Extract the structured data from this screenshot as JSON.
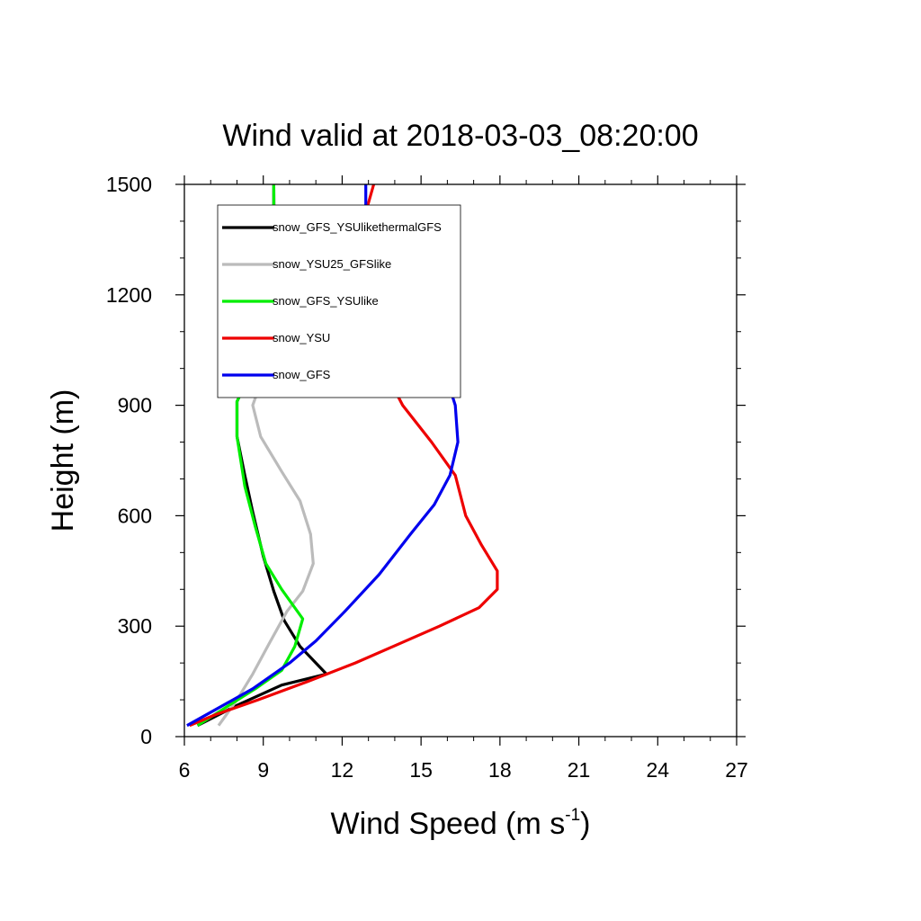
{
  "chart_data": {
    "type": "line",
    "title": "Wind valid at 2018-03-03_08:20:00",
    "xlabel": "Wind Speed (m s",
    "xlabel_superscript": "-1",
    "xlabel_suffix": ")",
    "ylabel": "Height (m)",
    "xlim": [
      6,
      27
    ],
    "ylim": [
      0,
      1500
    ],
    "xticks": [
      6,
      9,
      12,
      15,
      18,
      21,
      24,
      27
    ],
    "yticks": [
      0,
      300,
      600,
      900,
      1200,
      1500
    ],
    "x_minor_step": 1,
    "y_minor_step": 100,
    "grid": false,
    "legend_position": "top-left",
    "series": [
      {
        "name": "snow_GFS_YSUlikethermalGFS",
        "color": "#000000",
        "points": [
          [
            6.5,
            30
          ],
          [
            8.0,
            85
          ],
          [
            9.7,
            140
          ],
          [
            11.4,
            170
          ],
          [
            10.4,
            245
          ],
          [
            9.8,
            315
          ],
          [
            9.4,
            395
          ],
          [
            9.0,
            490
          ],
          [
            8.6,
            610
          ],
          [
            8.3,
            710
          ],
          [
            8.0,
            815
          ],
          [
            8.0,
            910
          ],
          [
            8.6,
            1000
          ],
          [
            9.1,
            1080
          ],
          [
            9.3,
            1130
          ],
          [
            9.4,
            1250
          ],
          [
            9.4,
            1380
          ],
          [
            9.4,
            1500
          ]
        ]
      },
      {
        "name": "snow_YSU25_GFSlike",
        "color": "#bbbbbb",
        "points": [
          [
            7.3,
            30
          ],
          [
            8.0,
            100
          ],
          [
            8.6,
            170
          ],
          [
            9.2,
            250
          ],
          [
            9.9,
            340
          ],
          [
            10.5,
            395
          ],
          [
            10.9,
            470
          ],
          [
            10.8,
            550
          ],
          [
            10.4,
            640
          ],
          [
            9.7,
            720
          ],
          [
            8.9,
            815
          ],
          [
            8.6,
            900
          ],
          [
            9.0,
            980
          ],
          [
            9.3,
            1030
          ],
          [
            9.5,
            1100
          ],
          [
            9.5,
            1250
          ],
          [
            9.4,
            1500
          ]
        ]
      },
      {
        "name": "snow_GFS_YSUlike",
        "color": "#00ee00",
        "points": [
          [
            6.5,
            30
          ],
          [
            7.7,
            85
          ],
          [
            8.7,
            130
          ],
          [
            9.7,
            180
          ],
          [
            10.2,
            245
          ],
          [
            10.5,
            320
          ],
          [
            9.7,
            400
          ],
          [
            9.1,
            470
          ],
          [
            8.7,
            570
          ],
          [
            8.3,
            680
          ],
          [
            8.0,
            815
          ],
          [
            8.0,
            910
          ],
          [
            8.6,
            1000
          ],
          [
            9.1,
            1080
          ],
          [
            9.3,
            1130
          ],
          [
            9.4,
            1250
          ],
          [
            9.4,
            1500
          ]
        ]
      },
      {
        "name": "snow_YSU",
        "color": "#ee0000",
        "points": [
          [
            6.2,
            30
          ],
          [
            7.2,
            60
          ],
          [
            8.8,
            100
          ],
          [
            10.7,
            150
          ],
          [
            12.5,
            200
          ],
          [
            14.1,
            250
          ],
          [
            15.7,
            300
          ],
          [
            17.2,
            350
          ],
          [
            17.9,
            400
          ],
          [
            17.9,
            450
          ],
          [
            17.3,
            520
          ],
          [
            16.7,
            600
          ],
          [
            16.3,
            710
          ],
          [
            15.4,
            800
          ],
          [
            14.3,
            900
          ],
          [
            13.5,
            1010
          ],
          [
            12.8,
            1100
          ],
          [
            12.5,
            1200
          ],
          [
            12.4,
            1300
          ],
          [
            12.7,
            1380
          ],
          [
            13.0,
            1450
          ],
          [
            13.2,
            1500
          ]
        ]
      },
      {
        "name": "snow_GFS",
        "color": "#0000ee",
        "points": [
          [
            6.1,
            30
          ],
          [
            7.1,
            70
          ],
          [
            8.6,
            130
          ],
          [
            10.0,
            200
          ],
          [
            11.0,
            260
          ],
          [
            12.1,
            340
          ],
          [
            13.4,
            440
          ],
          [
            14.6,
            550
          ],
          [
            15.5,
            630
          ],
          [
            16.1,
            710
          ],
          [
            16.4,
            800
          ],
          [
            16.3,
            900
          ],
          [
            15.9,
            990
          ],
          [
            15.1,
            1080
          ],
          [
            14.1,
            1170
          ],
          [
            13.5,
            1230
          ],
          [
            13.0,
            1310
          ],
          [
            12.9,
            1400
          ],
          [
            12.9,
            1500
          ]
        ]
      }
    ]
  }
}
